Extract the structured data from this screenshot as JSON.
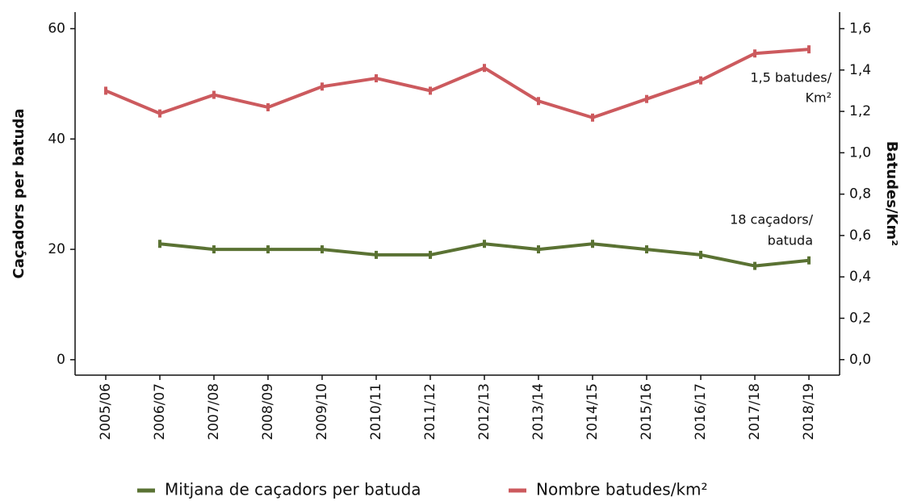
{
  "chart_data": {
    "type": "line",
    "categories": [
      "2005/06",
      "2006/07",
      "2007/08",
      "2008/09",
      "2009/10",
      "2010/11",
      "2011/12",
      "2012/13",
      "2013/14",
      "2014/15",
      "2015/16",
      "2016/17",
      "2017/18",
      "2018/19"
    ],
    "series": [
      {
        "name": "Mitjana de caçadors per batuda",
        "color": "#5a7233",
        "values": [
          null,
          21,
          20,
          20,
          20,
          19,
          19,
          21,
          20,
          21,
          20,
          19,
          17,
          18
        ]
      },
      {
        "name": "Nombre batudes/km²",
        "color": "#cc5a5e",
        "axis": "y2",
        "values": [
          1.3,
          1.19,
          1.28,
          1.22,
          1.32,
          1.36,
          1.3,
          1.41,
          1.25,
          1.17,
          1.26,
          1.35,
          1.48,
          1.5
        ]
      }
    ],
    "ylabel": "Caçadors per batuda",
    "y2label": "Batudes/Km²",
    "ylim": [
      -2.8,
      63
    ],
    "yticks": [
      0,
      20,
      40,
      60
    ],
    "y2lim": [
      -0.075,
      1.68
    ],
    "y2ticks": [
      {
        "value": 0,
        "label": "0,0"
      },
      {
        "value": 0.2,
        "label": "0,2"
      },
      {
        "value": 0.4,
        "label": "0,4"
      },
      {
        "value": 0.6,
        "label": "0,6"
      },
      {
        "value": 0.8,
        "label": "0,8"
      },
      {
        "value": 1.0,
        "label": "1,0"
      },
      {
        "value": 1.2,
        "label": "1,2"
      },
      {
        "value": 1.4,
        "label": "1,4"
      },
      {
        "value": 1.6,
        "label": "1,6"
      }
    ],
    "annotations": [
      [
        "1,5 batudes/",
        "Km²"
      ],
      [
        "18 caçadors/",
        "batuda"
      ]
    ],
    "legend": "bottom"
  }
}
